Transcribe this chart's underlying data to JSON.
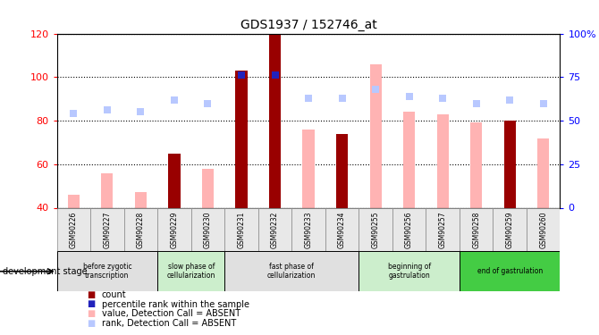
{
  "title": "GDS1937 / 152746_at",
  "samples": [
    "GSM90226",
    "GSM90227",
    "GSM90228",
    "GSM90229",
    "GSM90230",
    "GSM90231",
    "GSM90232",
    "GSM90233",
    "GSM90234",
    "GSM90255",
    "GSM90256",
    "GSM90257",
    "GSM90258",
    "GSM90259",
    "GSM90260"
  ],
  "count_values": [
    null,
    null,
    null,
    65,
    null,
    103,
    120,
    null,
    74,
    null,
    null,
    null,
    null,
    80,
    null
  ],
  "value_absent": [
    46,
    56,
    47,
    null,
    58,
    null,
    null,
    76,
    null,
    106,
    84,
    83,
    79,
    null,
    72
  ],
  "rank_absent_pct": [
    54,
    56,
    55,
    62,
    60,
    null,
    null,
    63,
    63,
    68,
    64,
    63,
    60,
    62,
    60
  ],
  "percentile_rank_pct": [
    null,
    null,
    null,
    null,
    null,
    76,
    76,
    null,
    null,
    null,
    null,
    null,
    null,
    null,
    null
  ],
  "ylim_left": [
    40,
    120
  ],
  "ylim_right": [
    0,
    100
  ],
  "yticks_left": [
    40,
    60,
    80,
    100,
    120
  ],
  "ytick_labels_left": [
    "40",
    "60",
    "80",
    "100",
    "120"
  ],
  "yticks_right": [
    0,
    25,
    50,
    75,
    100
  ],
  "ytick_labels_right": [
    "0",
    "25",
    "50",
    "75",
    "100%"
  ],
  "count_color": "#990000",
  "value_absent_color": "#ffb3b3",
  "rank_absent_color": "#b8c8ff",
  "percentile_color": "#2222bb",
  "stage_groups": [
    {
      "label": "before zygotic\ntranscription",
      "start": 0,
      "end": 3,
      "color": "#e0e0e0"
    },
    {
      "label": "slow phase of\ncellularization",
      "start": 3,
      "end": 5,
      "color": "#cceecc"
    },
    {
      "label": "fast phase of\ncellularization",
      "start": 5,
      "end": 9,
      "color": "#e0e0e0"
    },
    {
      "label": "beginning of\ngastrulation",
      "start": 9,
      "end": 12,
      "color": "#cceecc"
    },
    {
      "label": "end of gastrulation",
      "start": 12,
      "end": 15,
      "color": "#44cc44"
    }
  ],
  "development_stage_label": "development stage",
  "legend_items": [
    {
      "label": "count",
      "color": "#990000"
    },
    {
      "label": "percentile rank within the sample",
      "color": "#2222bb"
    },
    {
      "label": "value, Detection Call = ABSENT",
      "color": "#ffb3b3"
    },
    {
      "label": "rank, Detection Call = ABSENT",
      "color": "#b8c8ff"
    }
  ],
  "bar_width": 0.35
}
